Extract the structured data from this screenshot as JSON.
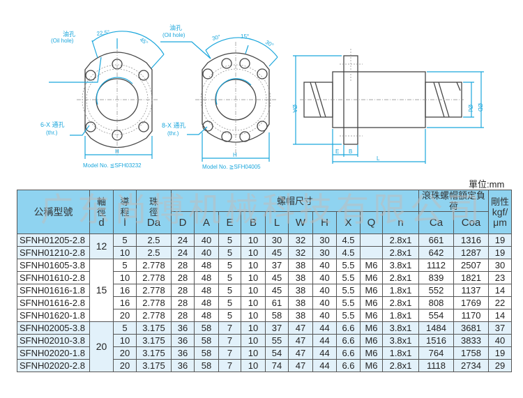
{
  "colors": {
    "accent": "#1aa6dc",
    "header_bg": "#8fd3f0",
    "row_blue": "#e2f1fa"
  },
  "drawings": {
    "front1": {
      "oil_hole_cn": "油孔",
      "oil_hole_en": "(Oil hole)",
      "angle1": "22.5°",
      "angle2": "45°",
      "holes_cn": "6-X 通孔",
      "holes_en": "(thr.)",
      "dim_h": "H",
      "model": "Model No. ≦SFH03232"
    },
    "front2": {
      "oil_hole_cn": "油孔",
      "oil_hole_en": "(Oil hole)",
      "angle1": "30°",
      "angle2": "15°",
      "angle3": "30°",
      "holes_cn": "8-X 通孔",
      "holes_en": "(thr.)",
      "dim_h": "H",
      "model": "Model No. ≧SFH04005"
    },
    "side": {
      "dim_a": "ØA",
      "dim_d": "ØD",
      "dim_dd": "Ød",
      "dim_e": "E",
      "dim_b": "B",
      "dim_l": "L"
    }
  },
  "unit": "單位:mm",
  "watermark": "广东尚博机械科技有限公司",
  "table": {
    "headers": {
      "model": "公稱型號",
      "shaft": "軸徑",
      "shaft_sym": "d",
      "lead": "導程",
      "lead_sym": "l",
      "ball": "珠徑",
      "ball_sym": "Da",
      "nut_dims": "螺帽尺寸",
      "load": "滾珠螺帽額定負荷",
      "stiff": "剛性",
      "stiff_unit": "kgf/μm",
      "cols": [
        "D",
        "A",
        "E",
        "B",
        "L",
        "W",
        "H",
        "X",
        "Q",
        "n",
        "Ca",
        "Coa"
      ]
    },
    "groups": [
      {
        "d": "12",
        "shade": "blue",
        "rows": [
          [
            "SFNH01205-2.8",
            "5",
            "2.5",
            "24",
            "40",
            "5",
            "10",
            "30",
            "32",
            "30",
            "4.5",
            "",
            "2.8x1",
            "661",
            "1316",
            "19"
          ],
          [
            "SFNH01210-2.8",
            "10",
            "2.5",
            "24",
            "40",
            "5",
            "10",
            "45",
            "32",
            "30",
            "4.5",
            "",
            "2.8x1",
            "642",
            "1287",
            "19"
          ]
        ]
      },
      {
        "d": "15",
        "shade": "white",
        "rows": [
          [
            "SFNH01605-3.8",
            "5",
            "2.778",
            "28",
            "48",
            "5",
            "10",
            "37",
            "38",
            "40",
            "5.5",
            "M6",
            "3.8x1",
            "1112",
            "2507",
            "30"
          ],
          [
            "SFNH01610-2.8",
            "10",
            "2.778",
            "28",
            "48",
            "5",
            "10",
            "45",
            "38",
            "40",
            "5.5",
            "M6",
            "2.8x1",
            "839",
            "1821",
            "23"
          ],
          [
            "SFNH01616-1.8",
            "16",
            "2.778",
            "28",
            "48",
            "5",
            "10",
            "45",
            "38",
            "40",
            "5.5",
            "M6",
            "1.8x1",
            "552",
            "1137",
            "14"
          ],
          [
            "SFNH01616-2.8",
            "16",
            "2.778",
            "28",
            "48",
            "5",
            "10",
            "61",
            "38",
            "40",
            "5.5",
            "M6",
            "2.8x1",
            "808",
            "1769",
            "22"
          ],
          [
            "SFNH01620-1.8",
            "20",
            "2.778",
            "28",
            "48",
            "5",
            "10",
            "58",
            "38",
            "40",
            "5.5",
            "M6",
            "1.8x1",
            "554",
            "1170",
            "14"
          ]
        ]
      },
      {
        "d": "20",
        "shade": "blue",
        "rows": [
          [
            "SFNH02005-3.8",
            "5",
            "3.175",
            "36",
            "58",
            "7",
            "10",
            "37",
            "47",
            "44",
            "6.6",
            "M6",
            "3.8x1",
            "1484",
            "3681",
            "37"
          ],
          [
            "SFNH02010-3.8",
            "10",
            "3.175",
            "36",
            "58",
            "7",
            "10",
            "55",
            "47",
            "44",
            "6.6",
            "M6",
            "3.8x1",
            "1516",
            "3833",
            "40"
          ],
          [
            "SFNH02020-1.8",
            "20",
            "3.175",
            "36",
            "58",
            "7",
            "10",
            "54",
            "47",
            "44",
            "6.6",
            "M6",
            "1.8x1",
            "764",
            "1758",
            "19"
          ],
          [
            "SFNH02020-2.8",
            "20",
            "3.175",
            "36",
            "58",
            "7",
            "10",
            "74",
            "47",
            "44",
            "6.6",
            "M6",
            "2.8x1",
            "1118",
            "2734",
            "29"
          ]
        ]
      }
    ]
  }
}
